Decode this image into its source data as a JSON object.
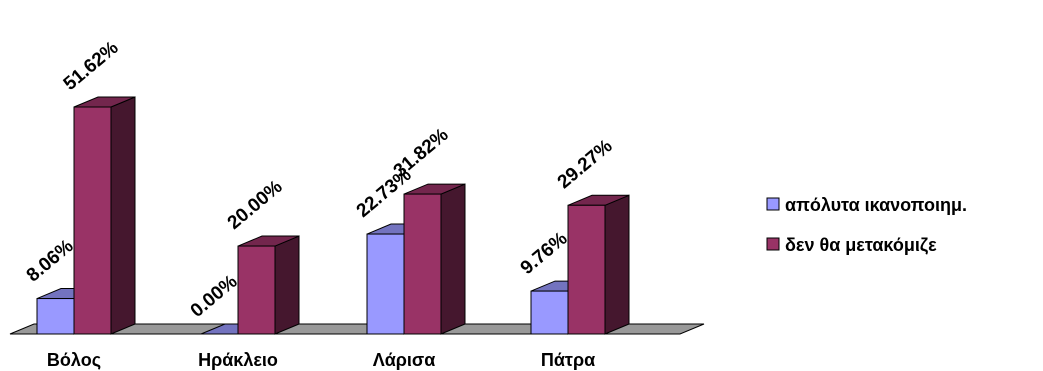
{
  "chart_data": {
    "type": "bar",
    "style": "3d-clustered-column",
    "categories": [
      "Βόλος",
      "Ηράκλειο",
      "Λάρισα",
      "Πάτρα"
    ],
    "series": [
      {
        "name": "απόλυτα ικανοποιημ.",
        "values": [
          8.06,
          0.0,
          22.73,
          9.76
        ],
        "labels": [
          "8.06%",
          "0.00%",
          "22.73%",
          "9.76%"
        ],
        "color": "#9999ff"
      },
      {
        "name": "δεν θα μετακόμιζε",
        "values": [
          51.62,
          20.0,
          31.82,
          29.27
        ],
        "labels": [
          "51.62%",
          "20.00%",
          "31.82%",
          "29.27%"
        ],
        "color": "#993366"
      }
    ],
    "ylim": [
      0,
      60
    ],
    "grid": false,
    "legend_position": "right"
  }
}
